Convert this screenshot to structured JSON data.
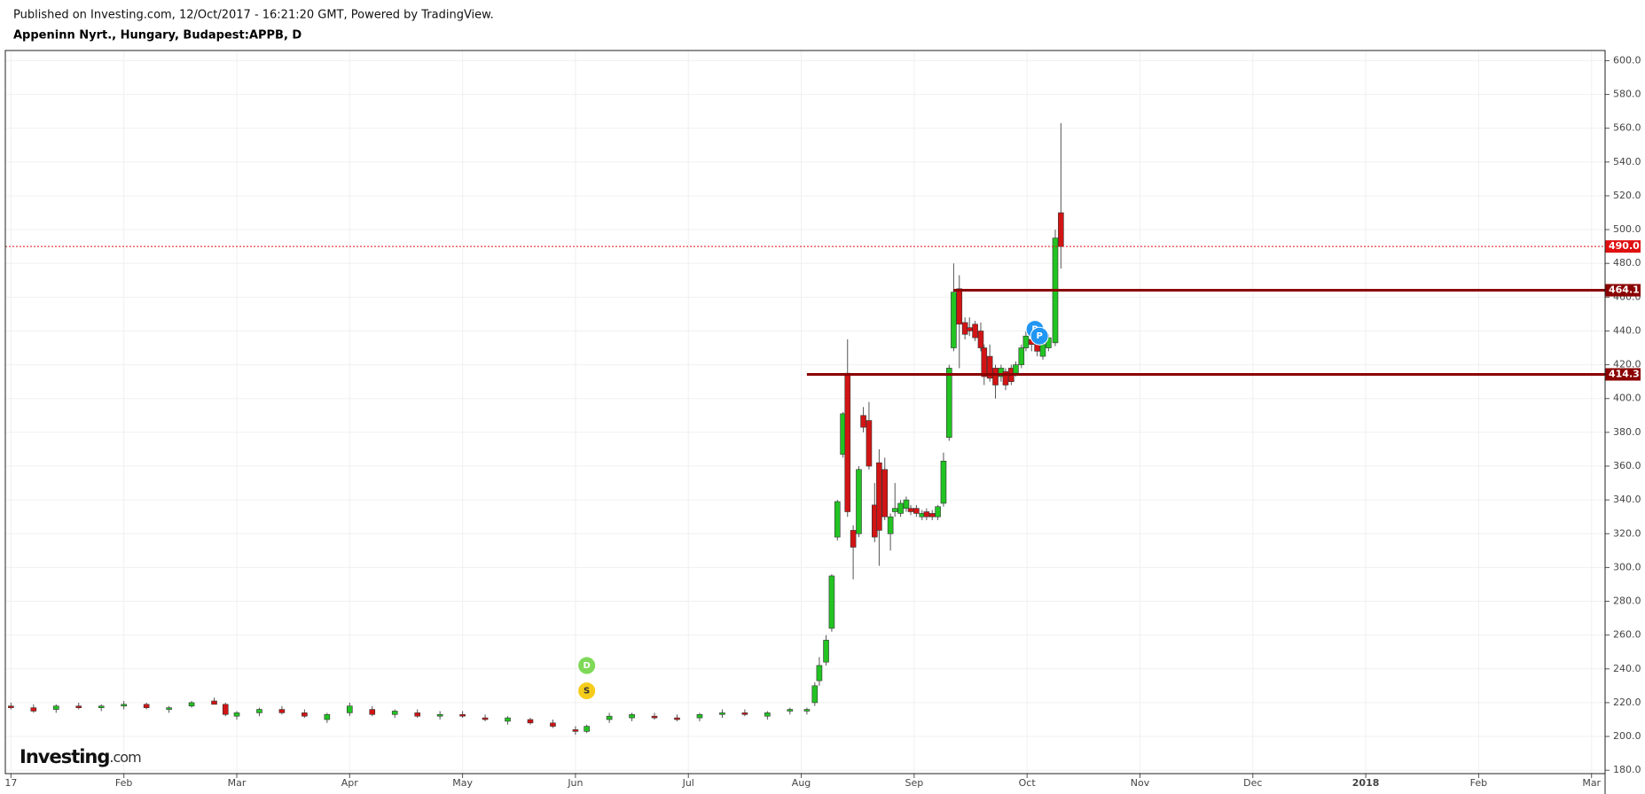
{
  "header": {
    "published": "Published on Investing.com, 12/Oct/2017 - 16:21:20 GMT, Powered by TradingView.",
    "title": "Appeninn Nyrt., Hungary, Budapest:APPB, D"
  },
  "logo": {
    "brand": "Investing",
    "suffix": ".com"
  },
  "chart_data": {
    "type": "candlestick",
    "grid": true,
    "up_color": "#22c322",
    "down_color": "#d21414",
    "xlim": [
      -0.05,
      14.12
    ],
    "ylim": [
      178,
      606
    ],
    "xticks": [
      {
        "value": 0,
        "label": "17"
      },
      {
        "value": 1,
        "label": "Feb"
      },
      {
        "value": 2,
        "label": "Mar"
      },
      {
        "value": 3,
        "label": "Apr"
      },
      {
        "value": 4,
        "label": "May"
      },
      {
        "value": 5,
        "label": "Jun"
      },
      {
        "value": 6,
        "label": "Jul"
      },
      {
        "value": 7,
        "label": "Aug"
      },
      {
        "value": 8,
        "label": "Sep"
      },
      {
        "value": 9,
        "label": "Oct"
      },
      {
        "value": 10,
        "label": "Nov"
      },
      {
        "value": 11,
        "label": "Dec"
      },
      {
        "value": 12,
        "label": "2018"
      },
      {
        "value": 13,
        "label": "Feb"
      },
      {
        "value": 14,
        "label": "Mar"
      }
    ],
    "yticks": [
      {
        "value": 180,
        "label": "180.0"
      },
      {
        "value": 200,
        "label": "200.0"
      },
      {
        "value": 220,
        "label": "220.0"
      },
      {
        "value": 240,
        "label": "240.0"
      },
      {
        "value": 260,
        "label": "260.0"
      },
      {
        "value": 280,
        "label": "280.0"
      },
      {
        "value": 300,
        "label": "300.0"
      },
      {
        "value": 320,
        "label": "320.0"
      },
      {
        "value": 340,
        "label": "340.0"
      },
      {
        "value": 360,
        "label": "360.0"
      },
      {
        "value": 380,
        "label": "380.0"
      },
      {
        "value": 400,
        "label": "400.0"
      },
      {
        "value": 420,
        "label": "420.0"
      },
      {
        "value": 440,
        "label": "440.0"
      },
      {
        "value": 460,
        "label": "460.0"
      },
      {
        "value": 480,
        "label": "480.0"
      },
      {
        "value": 500,
        "label": "500.0"
      },
      {
        "value": 520,
        "label": "520.0"
      },
      {
        "value": 540,
        "label": "540.0"
      },
      {
        "value": 560,
        "label": "560.0"
      },
      {
        "value": 580,
        "label": "580.0"
      },
      {
        "value": 600,
        "label": "600.0"
      }
    ],
    "x": [
      0,
      0.2,
      0.4,
      0.6,
      0.8,
      1,
      1.2,
      1.4,
      1.6,
      1.8,
      1.9,
      2,
      2.2,
      2.4,
      2.6,
      2.8,
      3,
      3.2,
      3.4,
      3.6,
      3.8,
      4,
      4.2,
      4.4,
      4.6,
      4.8,
      5,
      5.1,
      5.3,
      5.5,
      5.7,
      5.9,
      6.1,
      6.3,
      6.5,
      6.7,
      6.9,
      7.05,
      7.12,
      7.16,
      7.22,
      7.27,
      7.32,
      7.37,
      7.41,
      7.46,
      7.51,
      7.55,
      7.6,
      7.65,
      7.69,
      7.74,
      7.79,
      7.83,
      7.88,
      7.93,
      7.97,
      8.02,
      8.07,
      8.11,
      8.16,
      8.21,
      8.26,
      8.31,
      8.35,
      8.4,
      8.45,
      8.49,
      8.54,
      8.59,
      8.62,
      8.67,
      8.72,
      8.77,
      8.81,
      8.86,
      8.9,
      8.95,
      8.99,
      9.04,
      9.09,
      9.14,
      9.19,
      9.25,
      9.3
    ],
    "open": [
      218,
      217,
      216,
      218,
      217,
      218,
      219,
      216,
      218,
      221,
      219,
      212,
      214,
      216,
      214,
      210,
      214,
      216,
      213,
      214,
      212,
      213,
      211,
      209,
      210,
      208,
      204,
      203,
      210,
      211,
      212,
      211,
      211,
      213,
      214,
      212,
      215,
      215,
      220,
      233,
      244,
      264,
      318,
      367,
      415,
      322,
      320,
      390,
      387,
      337,
      362,
      358,
      320,
      333,
      332,
      335,
      335,
      335,
      330,
      333,
      332,
      330,
      338,
      377,
      430,
      465,
      445,
      442,
      444,
      440,
      430,
      425,
      418,
      413,
      416,
      418,
      415,
      420,
      430,
      435,
      432,
      425,
      430,
      433,
      510
    ],
    "high": [
      220,
      219,
      219,
      220,
      219,
      221,
      220,
      218,
      221,
      223,
      220,
      215,
      217,
      218,
      216,
      214,
      220,
      218,
      216,
      216,
      215,
      215,
      213,
      212,
      211,
      210,
      206,
      207,
      214,
      214,
      214,
      213,
      214,
      216,
      216,
      215,
      217,
      217,
      232,
      247,
      260,
      296,
      340,
      392,
      435,
      325,
      360,
      395,
      398,
      350,
      370,
      365,
      332,
      350,
      340,
      342,
      337,
      337,
      334,
      335,
      334,
      337,
      368,
      420,
      480,
      473,
      448,
      448,
      446,
      445,
      432,
      432,
      420,
      420,
      418,
      420,
      422,
      432,
      440,
      437,
      434,
      434,
      438,
      500,
      563
    ],
    "low": [
      216,
      214,
      214,
      216,
      215,
      216,
      216,
      214,
      217,
      219,
      212,
      210,
      212,
      213,
      211,
      208,
      212,
      212,
      211,
      211,
      210,
      211,
      209,
      207,
      207,
      205,
      201,
      202,
      208,
      209,
      210,
      209,
      209,
      211,
      212,
      210,
      213,
      213,
      218,
      230,
      242,
      262,
      316,
      365,
      330,
      293,
      318,
      380,
      358,
      315,
      301,
      328,
      310,
      330,
      330,
      333,
      331,
      330,
      328,
      328,
      328,
      328,
      336,
      375,
      428,
      418,
      435,
      437,
      434,
      428,
      408,
      410,
      400,
      410,
      405,
      408,
      413,
      418,
      428,
      428,
      425,
      423,
      428,
      431,
      477
    ],
    "close": [
      217,
      215,
      218,
      217,
      218,
      219,
      217,
      217,
      220,
      219,
      213,
      214,
      216,
      214,
      212,
      213,
      218,
      213,
      215,
      212,
      213,
      212,
      210,
      211,
      208,
      206,
      203,
      206,
      212,
      213,
      211,
      210,
      213,
      214,
      213,
      214,
      216,
      216,
      230,
      242,
      257,
      295,
      339,
      391,
      333,
      312,
      358,
      383,
      360,
      318,
      322,
      330,
      330,
      335,
      338,
      340,
      333,
      332,
      332,
      330,
      330,
      336,
      363,
      418,
      463,
      444,
      438,
      440,
      436,
      430,
      413,
      412,
      408,
      418,
      408,
      410,
      420,
      430,
      437,
      432,
      428,
      432,
      436,
      495,
      490
    ],
    "price_lines": [
      {
        "value": 490,
        "label": "490.0",
        "color": "#e01010",
        "style": "dotted"
      },
      {
        "value": 464.1,
        "label": "464.1",
        "color": "#8b0000",
        "start": 8.35
      },
      {
        "value": 414.3,
        "label": "414.3",
        "color": "#8b0000",
        "start": 7.05
      }
    ],
    "events": [
      {
        "label": "D",
        "x": 5.1,
        "y": 242,
        "color": "#7ed957"
      },
      {
        "label": "S",
        "x": 5.1,
        "y": 227,
        "color": "#f5cc1b"
      },
      {
        "label": "P",
        "x": 9.07,
        "y": 441,
        "color": "#2196f3"
      },
      {
        "label": "P",
        "x": 9.11,
        "y": 437,
        "color": "#2196f3"
      }
    ]
  }
}
